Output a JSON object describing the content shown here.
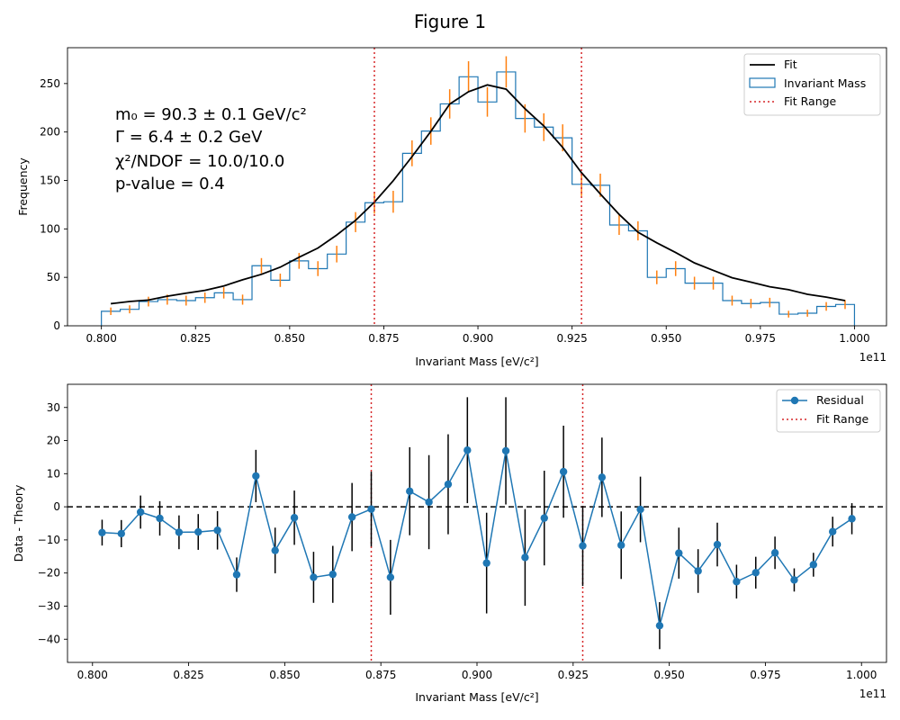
{
  "figure_title": "Figure 1",
  "colors": {
    "hist": "#1f77b4",
    "errorbar": "#ff7f0e",
    "fit": "#000000",
    "fit_range": "#d62728",
    "residual": "#1f77b4"
  },
  "chart_data": [
    {
      "type": "bar",
      "xlabel": "Invariant Mass [eV/c²]",
      "ylabel": "Frequency",
      "offset_text": "1e11",
      "x_scale_factor": 100000000000,
      "xlim": [
        0.791,
        1.0085
      ],
      "ylim": [
        0,
        287
      ],
      "x_ticks": [
        "0.800",
        "0.825",
        "0.850",
        "0.875",
        "0.900",
        "0.925",
        "0.950",
        "0.975",
        "1.000"
      ],
      "y_ticks": [
        "0",
        "50",
        "100",
        "150",
        "200",
        "250"
      ],
      "bin_edges_start": 0.8,
      "bin_width": 0.005,
      "histogram": {
        "name": "Invariant Mass",
        "values": [
          15,
          17,
          25,
          27,
          26,
          29,
          34,
          27,
          62,
          47,
          67,
          59,
          74,
          107,
          127,
          128,
          178,
          201,
          229,
          257,
          231,
          262,
          214,
          205,
          194,
          146,
          145,
          104,
          98,
          50,
          59,
          44,
          44,
          26,
          23,
          24,
          12,
          13,
          20,
          22
        ]
      },
      "fit": {
        "name": "Fit",
        "x": [
          0.8025,
          0.8075,
          0.8125,
          0.8175,
          0.8225,
          0.8275,
          0.8325,
          0.8375,
          0.8425,
          0.8475,
          0.8525,
          0.8575,
          0.8625,
          0.8675,
          0.8725,
          0.8775,
          0.8825,
          0.8875,
          0.8925,
          0.8975,
          0.9025,
          0.9075,
          0.9125,
          0.9175,
          0.9225,
          0.9275,
          0.9325,
          0.9375,
          0.9425,
          0.9475,
          0.9525,
          0.9575,
          0.9625,
          0.9675,
          0.9725,
          0.9775,
          0.9825,
          0.9875,
          0.9925,
          0.9975
        ],
        "values": [
          22.8,
          25.1,
          26.6,
          30.5,
          33.7,
          36.6,
          41.1,
          47.5,
          53.1,
          60.5,
          70.8,
          80.2,
          93.7,
          108.8,
          127.6,
          149.7,
          174.6,
          200.7,
          228.8,
          241.6,
          248.6,
          244.2,
          224,
          206.2,
          184.1,
          158,
          136.1,
          115,
          96.6,
          85.6,
          75.6,
          64.9,
          57.2,
          49.6,
          45,
          40.3,
          37.3,
          32.5,
          29.6,
          26
        ]
      },
      "fit_range": {
        "name": "Fit Range",
        "lines": [
          0.8725,
          0.9275
        ]
      },
      "annotations": [
        "m₀ = 90.3 ± 0.1 GeV/c²",
        "Γ = 6.4 ± 0.2 GeV",
        "χ²/NDOF = 10.0/10.0",
        "p-value = 0.4"
      ],
      "legend": {
        "placement": "top-right",
        "entries": [
          "Fit",
          "Invariant Mass",
          "Fit Range"
        ]
      }
    },
    {
      "type": "scatter",
      "xlabel": "Invariant Mass [eV/c²]",
      "ylabel": "Data - Theory",
      "offset_text": "1e11",
      "xlim": [
        0.7935,
        1.0065
      ],
      "ylim": [
        -47,
        37
      ],
      "x_ticks": [
        "0.800",
        "0.825",
        "0.850",
        "0.875",
        "0.900",
        "0.925",
        "0.950",
        "0.975",
        "1.000"
      ],
      "y_ticks": [
        "−40",
        "−30",
        "−20",
        "−10",
        "0",
        "10",
        "20",
        "30"
      ],
      "y_tick_values": [
        -40,
        -30,
        -20,
        -10,
        0,
        10,
        20,
        30
      ],
      "zero_line": 0,
      "residual": {
        "name": "Residual",
        "x": [
          0.8025,
          0.8075,
          0.8125,
          0.8175,
          0.8225,
          0.8275,
          0.8325,
          0.8375,
          0.8425,
          0.8475,
          0.8525,
          0.8575,
          0.8625,
          0.8675,
          0.8725,
          0.8775,
          0.8825,
          0.8875,
          0.8925,
          0.8975,
          0.9025,
          0.9075,
          0.9125,
          0.9175,
          0.9225,
          0.9275,
          0.9325,
          0.9375,
          0.9425,
          0.9475,
          0.9525,
          0.9575,
          0.9625,
          0.9675,
          0.9725,
          0.9775,
          0.9825,
          0.9875,
          0.9925,
          0.9975
        ],
        "values": [
          -7.8,
          -8.1,
          -1.6,
          -3.5,
          -7.7,
          -7.6,
          -7.1,
          -20.5,
          9.3,
          -13.2,
          -3.3,
          -21.3,
          -20.4,
          -3.1,
          -0.7,
          -21.3,
          4.7,
          1.4,
          6.8,
          17.1,
          -17,
          16.9,
          -15.3,
          -3.4,
          10.6,
          -11.8,
          8.9,
          -11.6,
          -0.8,
          -35.9,
          -14,
          -19.4,
          -11.4,
          -22.6,
          -19.9,
          -13.9,
          -22.1,
          -17.5,
          -7.5,
          -3.6
        ],
        "errors": [
          3.9,
          4.1,
          5,
          5.2,
          5.1,
          5.4,
          5.8,
          5.2,
          7.9,
          6.9,
          8.2,
          7.7,
          8.6,
          10.3,
          11.3,
          11.3,
          13.3,
          14.2,
          15.1,
          16,
          15.2,
          16.2,
          14.6,
          14.3,
          13.9,
          12.1,
          12,
          10.2,
          9.9,
          7.1,
          7.7,
          6.6,
          6.6,
          5.1,
          4.8,
          4.9,
          3.5,
          3.6,
          4.5,
          4.7
        ]
      },
      "fit_range": {
        "name": "Fit Range",
        "lines": [
          0.8725,
          0.9275
        ]
      },
      "legend": {
        "placement": "top-right",
        "entries": [
          "Residual",
          "Fit Range"
        ]
      }
    }
  ]
}
